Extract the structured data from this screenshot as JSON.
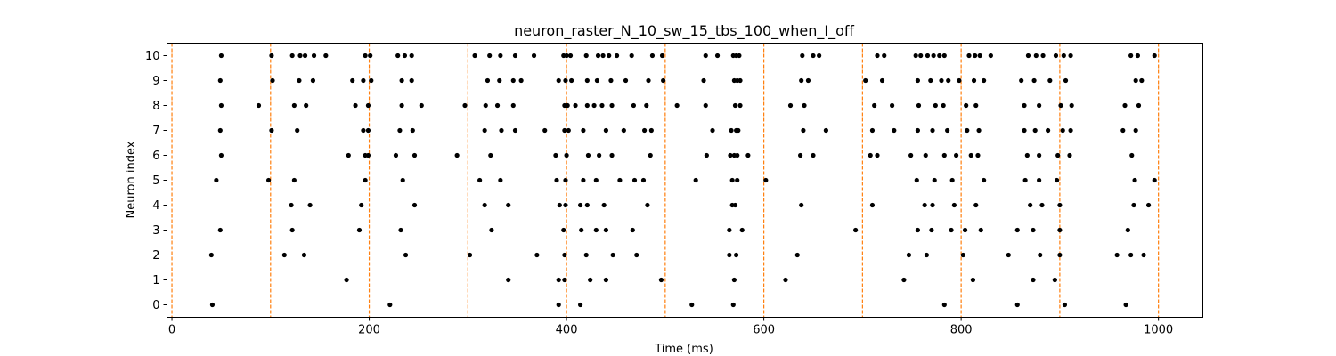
{
  "chart_data": {
    "type": "scatter",
    "title": "neuron_raster_N_10_sw_15_tbs_100_when_I_off",
    "xlabel": "Time (ms)",
    "ylabel": "Neuron index",
    "xlim": [
      -5,
      1045
    ],
    "ylim": [
      -0.5,
      10.5
    ],
    "xticks": [
      0,
      200,
      400,
      600,
      800,
      1000
    ],
    "yticks": [
      0,
      1,
      2,
      3,
      4,
      5,
      6,
      7,
      8,
      9,
      10
    ],
    "grid": false,
    "legend": "none",
    "colors": {
      "spikes": "#000000",
      "markers": "#ff7f0e"
    },
    "vertical_markers": [
      0,
      100,
      200,
      300,
      400,
      500,
      600,
      700,
      800,
      900,
      1000
    ],
    "series": [
      {
        "neuron": 0,
        "x": [
          41,
          221,
          392,
          414,
          527,
          569,
          783,
          857,
          905,
          967
        ]
      },
      {
        "neuron": 1,
        "x": [
          177,
          341,
          392,
          398,
          424,
          440,
          496,
          570,
          622,
          742,
          812,
          873,
          895
        ]
      },
      {
        "neuron": 2,
        "x": [
          40,
          114,
          134,
          237,
          302,
          370,
          398,
          420,
          447,
          471,
          565,
          572,
          634,
          747,
          765,
          802,
          848,
          880,
          900,
          958,
          972,
          985
        ]
      },
      {
        "neuron": 3,
        "x": [
          49,
          122,
          190,
          232,
          324,
          397,
          415,
          430,
          440,
          467,
          565,
          578,
          693,
          756,
          770,
          790,
          804,
          820,
          857,
          873,
          900,
          969
        ]
      },
      {
        "neuron": 4,
        "x": [
          121,
          140,
          192,
          246,
          317,
          341,
          393,
          399,
          414,
          421,
          438,
          482,
          568,
          571,
          638,
          710,
          763,
          771,
          793,
          815,
          870,
          882,
          900,
          975,
          990
        ]
      },
      {
        "neuron": 5,
        "x": [
          45,
          98,
          124,
          196,
          234,
          312,
          333,
          390,
          399,
          417,
          430,
          454,
          469,
          478,
          531,
          568,
          573,
          602,
          755,
          773,
          791,
          823,
          865,
          879,
          897,
          976,
          996
        ]
      },
      {
        "neuron": 6,
        "x": [
          50,
          179,
          196,
          199,
          227,
          246,
          289,
          323,
          389,
          400,
          422,
          433,
          446,
          485,
          542,
          566,
          570,
          573,
          584,
          637,
          650,
          708,
          715,
          749,
          764,
          783,
          795,
          810,
          817,
          867,
          879,
          898,
          910,
          973
        ]
      },
      {
        "neuron": 7,
        "x": [
          49,
          101,
          127,
          194,
          199,
          231,
          244,
          317,
          334,
          348,
          378,
          398,
          402,
          417,
          440,
          458,
          479,
          486,
          548,
          567,
          572,
          574,
          640,
          663,
          710,
          732,
          756,
          771,
          786,
          806,
          818,
          864,
          875,
          888,
          903,
          911,
          964,
          977
        ]
      },
      {
        "neuron": 8,
        "x": [
          50,
          88,
          124,
          136,
          186,
          199,
          233,
          253,
          297,
          318,
          330,
          346,
          398,
          401,
          409,
          421,
          428,
          436,
          446,
          468,
          481,
          512,
          541,
          571,
          576,
          627,
          641,
          712,
          730,
          757,
          774,
          782,
          805,
          815,
          864,
          879,
          901,
          912,
          966,
          980
        ]
      },
      {
        "neuron": 9,
        "x": [
          49,
          102,
          129,
          143,
          183,
          194,
          202,
          233,
          243,
          320,
          332,
          346,
          354,
          392,
          399,
          405,
          421,
          431,
          445,
          460,
          483,
          498,
          539,
          570,
          573,
          576,
          638,
          645,
          703,
          720,
          756,
          769,
          780,
          787,
          798,
          813,
          823,
          861,
          874,
          890,
          906,
          977,
          983
        ]
      },
      {
        "neuron": 10,
        "x": [
          50,
          101,
          122,
          130,
          135,
          144,
          156,
          196,
          201,
          229,
          236,
          243,
          307,
          322,
          333,
          348,
          367,
          397,
          400,
          404,
          420,
          432,
          437,
          443,
          451,
          466,
          487,
          497,
          541,
          553,
          569,
          572,
          575,
          639,
          650,
          656,
          715,
          722,
          754,
          759,
          766,
          772,
          778,
          783,
          808,
          814,
          819,
          830,
          868,
          876,
          883,
          896,
          904,
          911,
          972,
          979,
          996
        ]
      }
    ]
  }
}
